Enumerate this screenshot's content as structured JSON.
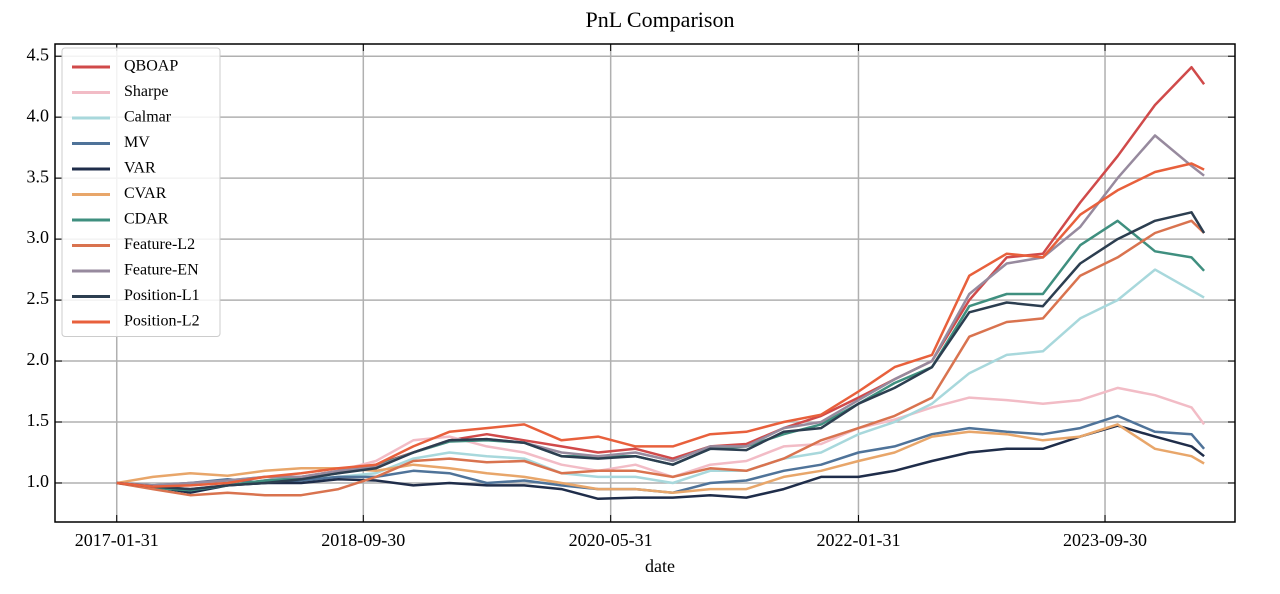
{
  "chart_data": {
    "type": "line",
    "title": "PnL Comparison",
    "x_label": "date",
    "x": [
      "2017-01-31",
      "2017-04-30",
      "2017-07-31",
      "2017-10-31",
      "2018-01-31",
      "2018-04-30",
      "2018-07-31",
      "2018-10-31",
      "2019-01-31",
      "2019-04-30",
      "2019-07-31",
      "2019-10-31",
      "2020-01-31",
      "2020-04-30",
      "2020-07-31",
      "2020-10-31",
      "2021-01-31",
      "2021-04-30",
      "2021-07-31",
      "2021-10-31",
      "2022-01-31",
      "2022-04-30",
      "2022-07-31",
      "2022-10-31",
      "2023-01-31",
      "2023-04-30",
      "2023-07-31",
      "2023-10-31",
      "2024-01-31",
      "2024-04-30",
      "2024-05-31"
    ],
    "xlim": [
      "2016-09-01",
      "2024-08-15"
    ],
    "xticks": [
      "2017-01-31",
      "2018-09-30",
      "2020-05-31",
      "2022-01-31",
      "2023-09-30"
    ],
    "ylim": [
      0.68,
      4.6
    ],
    "yticks": [
      {
        "value": 1,
        "label": "1.0"
      },
      1.5,
      {
        "value": 2,
        "label": "2.0"
      },
      2.5,
      {
        "value": 3,
        "label": "3.0"
      },
      3.5,
      {
        "value": 4,
        "label": "4.0"
      },
      4.5
    ],
    "grid": true,
    "legend": "upper left",
    "series": [
      {
        "name": "QBOAP",
        "color": "#d04a4a",
        "values": [
          1.0,
          0.97,
          0.95,
          0.98,
          1.02,
          1.05,
          1.1,
          1.15,
          1.25,
          1.35,
          1.4,
          1.35,
          1.3,
          1.25,
          1.28,
          1.2,
          1.3,
          1.32,
          1.45,
          1.55,
          1.7,
          1.85,
          2.0,
          2.5,
          2.85,
          2.88,
          3.3,
          3.68,
          4.1,
          4.41,
          4.27
        ]
      },
      {
        "name": "Sharpe",
        "color": "#f2bcc6",
        "values": [
          1.0,
          0.98,
          1.0,
          1.02,
          1.05,
          1.05,
          1.1,
          1.18,
          1.35,
          1.38,
          1.3,
          1.25,
          1.15,
          1.1,
          1.15,
          1.05,
          1.15,
          1.18,
          1.3,
          1.32,
          1.45,
          1.52,
          1.62,
          1.7,
          1.68,
          1.65,
          1.68,
          1.78,
          1.72,
          1.62,
          1.48
        ]
      },
      {
        "name": "Calmar",
        "color": "#a8d8dc",
        "values": [
          1.0,
          0.98,
          1.0,
          1.02,
          1.05,
          1.03,
          1.05,
          1.08,
          1.2,
          1.25,
          1.22,
          1.2,
          1.08,
          1.05,
          1.05,
          1.0,
          1.1,
          1.1,
          1.2,
          1.25,
          1.4,
          1.5,
          1.65,
          1.9,
          2.05,
          2.08,
          2.35,
          2.5,
          2.75,
          2.58,
          2.52
        ]
      },
      {
        "name": "MV",
        "color": "#4f7399",
        "values": [
          1.0,
          0.98,
          1.0,
          1.03,
          1.0,
          1.02,
          1.05,
          1.05,
          1.1,
          1.08,
          1.0,
          1.02,
          0.98,
          0.95,
          0.95,
          0.92,
          1.0,
          1.02,
          1.1,
          1.15,
          1.25,
          1.3,
          1.4,
          1.45,
          1.42,
          1.4,
          1.45,
          1.55,
          1.42,
          1.4,
          1.28
        ]
      },
      {
        "name": "VAR",
        "color": "#1f2d4a",
        "values": [
          1.0,
          0.97,
          0.92,
          0.98,
          1.0,
          1.0,
          1.03,
          1.02,
          0.98,
          1.0,
          0.98,
          0.98,
          0.95,
          0.87,
          0.88,
          0.88,
          0.9,
          0.88,
          0.95,
          1.05,
          1.05,
          1.1,
          1.18,
          1.25,
          1.28,
          1.28,
          1.38,
          1.47,
          1.38,
          1.3,
          1.22
        ]
      },
      {
        "name": "CVAR",
        "color": "#e8a66a",
        "values": [
          1.0,
          1.05,
          1.08,
          1.06,
          1.1,
          1.12,
          1.12,
          1.1,
          1.15,
          1.12,
          1.08,
          1.05,
          1.0,
          0.95,
          0.95,
          0.92,
          0.95,
          0.95,
          1.05,
          1.1,
          1.18,
          1.25,
          1.38,
          1.42,
          1.4,
          1.35,
          1.38,
          1.48,
          1.28,
          1.22,
          1.16
        ]
      },
      {
        "name": "CDAR",
        "color": "#3f8f7f",
        "values": [
          1.0,
          0.96,
          0.94,
          0.98,
          1.02,
          1.04,
          1.08,
          1.14,
          1.25,
          1.34,
          1.35,
          1.33,
          1.22,
          1.22,
          1.22,
          1.15,
          1.28,
          1.3,
          1.4,
          1.48,
          1.65,
          1.82,
          1.95,
          2.45,
          2.55,
          2.55,
          2.95,
          3.15,
          2.9,
          2.85,
          2.74
        ]
      },
      {
        "name": "Feature-L2",
        "color": "#d9734f",
        "values": [
          1.0,
          0.95,
          0.9,
          0.92,
          0.9,
          0.9,
          0.95,
          1.05,
          1.18,
          1.2,
          1.17,
          1.18,
          1.08,
          1.1,
          1.1,
          1.05,
          1.12,
          1.1,
          1.2,
          1.35,
          1.45,
          1.55,
          1.7,
          2.2,
          2.32,
          2.35,
          2.7,
          2.85,
          3.05,
          3.15,
          3.05
        ]
      },
      {
        "name": "Feature-EN",
        "color": "#978a9e",
        "values": [
          1.0,
          0.98,
          1.0,
          1.02,
          1.05,
          1.05,
          1.1,
          1.13,
          1.25,
          1.35,
          1.36,
          1.33,
          1.25,
          1.22,
          1.25,
          1.18,
          1.3,
          1.3,
          1.45,
          1.5,
          1.68,
          1.85,
          2.0,
          2.55,
          2.8,
          2.85,
          3.1,
          3.5,
          3.85,
          3.6,
          3.52
        ]
      },
      {
        "name": "Position-L1",
        "color": "#2c3e50",
        "values": [
          1.0,
          0.97,
          0.95,
          0.98,
          1.0,
          1.03,
          1.08,
          1.12,
          1.25,
          1.35,
          1.36,
          1.33,
          1.22,
          1.2,
          1.22,
          1.15,
          1.28,
          1.27,
          1.42,
          1.45,
          1.65,
          1.78,
          1.95,
          2.4,
          2.48,
          2.45,
          2.8,
          3.0,
          3.15,
          3.22,
          3.05
        ]
      },
      {
        "name": "Position-L2",
        "color": "#e8603c",
        "values": [
          1.0,
          0.97,
          0.98,
          1.0,
          1.05,
          1.08,
          1.12,
          1.15,
          1.3,
          1.42,
          1.45,
          1.48,
          1.35,
          1.38,
          1.3,
          1.3,
          1.4,
          1.42,
          1.5,
          1.56,
          1.75,
          1.95,
          2.05,
          2.7,
          2.88,
          2.85,
          3.2,
          3.4,
          3.55,
          3.62,
          3.57
        ]
      }
    ]
  }
}
